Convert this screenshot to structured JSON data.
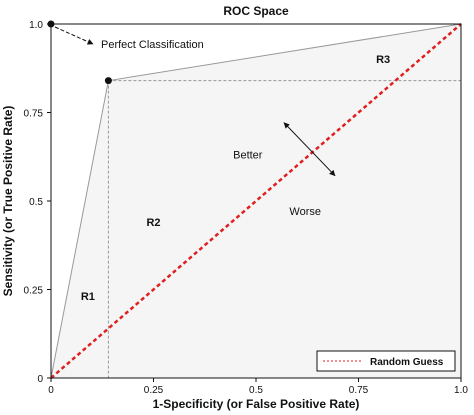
{
  "chart_data": {
    "type": "line",
    "title": "ROC Space",
    "xlabel": "1-Specificity (or False Positive Rate)",
    "ylabel": "Sensitivity (or True Positive Rate)",
    "xlim": [
      0,
      1
    ],
    "ylim": [
      0,
      1
    ],
    "x_ticks": [
      "0",
      "0.25",
      "0.5",
      "0.75",
      "1.0"
    ],
    "y_ticks": [
      "0",
      "0.25",
      "0.5",
      "0.75",
      "1.0"
    ],
    "grid": false,
    "legend_position": "bottom-right",
    "series": [
      {
        "name": "Random Guess",
        "color": "#e02020",
        "style": "dotted",
        "x": [
          0,
          1
        ],
        "y": [
          0,
          1
        ]
      }
    ],
    "roc_curve": {
      "color": "#999999",
      "x": [
        0,
        0.14,
        1.0
      ],
      "y": [
        0,
        0.84,
        1.0
      ]
    },
    "points": [
      {
        "x": 0,
        "y": 1.0,
        "label": "Perfect Classification"
      },
      {
        "x": 0.14,
        "y": 0.84
      }
    ],
    "guide_lines": {
      "x": 0.14,
      "y": 0.84,
      "color": "#999999"
    },
    "regions": [
      {
        "label": "R1",
        "x": 0.09,
        "y": 0.22
      },
      {
        "label": "R2",
        "x": 0.25,
        "y": 0.43
      },
      {
        "label": "R3",
        "x": 0.81,
        "y": 0.89
      }
    ],
    "annotations": [
      {
        "text": "Better",
        "x": 0.48,
        "y": 0.62
      },
      {
        "text": "Worse",
        "x": 0.62,
        "y": 0.46
      }
    ],
    "shading_color": "#f5f5f5"
  }
}
